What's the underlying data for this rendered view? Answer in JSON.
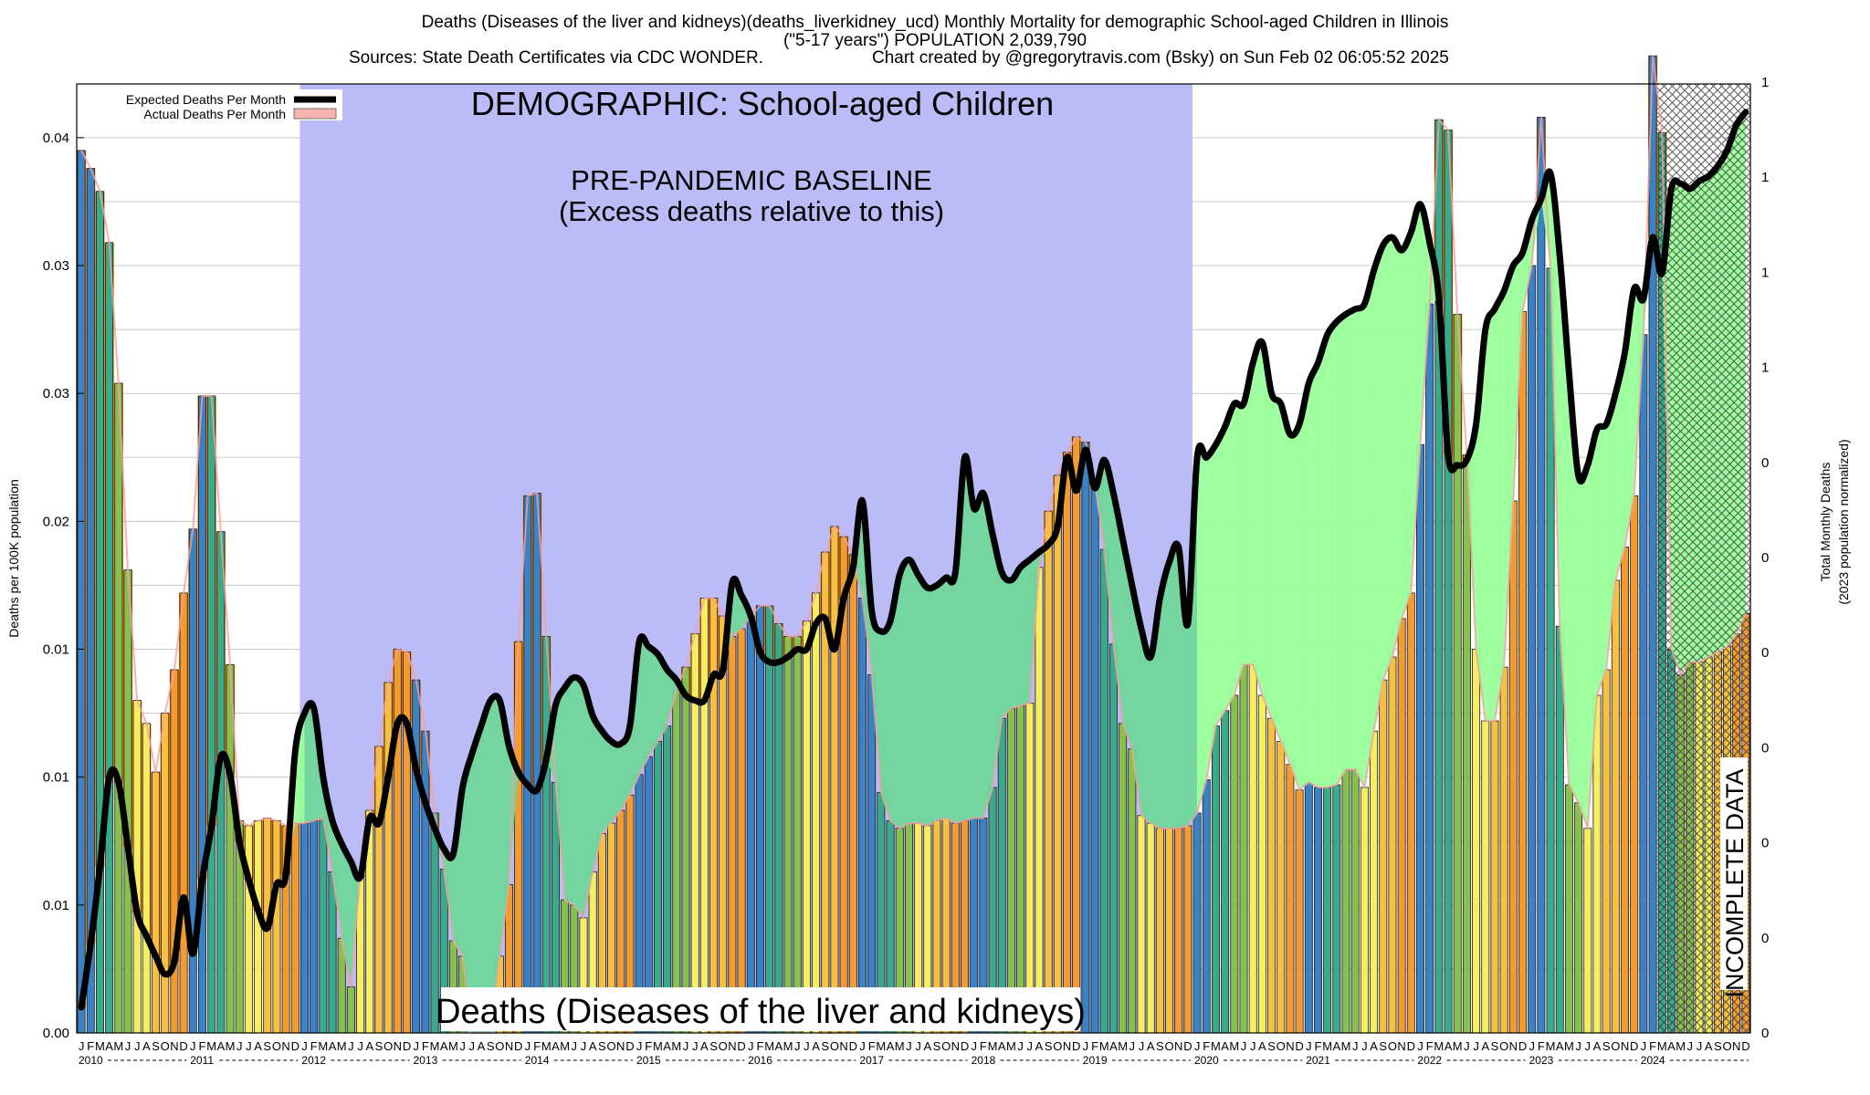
{
  "header": {
    "title_line1": "Deaths (Diseases of the liver and kidneys)(deaths_liverkidney_ucd) Monthly Mortality for demographic School-aged Children in Illinois",
    "title_line2": "(\"5-17 years\") POPULATION 2,039,790",
    "sources": "Sources: State Death Certificates via CDC WONDER.",
    "credit": "Chart created by @gregorytravis.com (Bsky) on Sun Feb 02 06:05:52 2025"
  },
  "annotations": {
    "demographic": "DEMOGRAPHIC: School-aged Children",
    "baseline_line1": "PRE-PANDEMIC BASELINE",
    "baseline_line2": "(Excess deaths relative to this)",
    "cause": "Deaths (Diseases of the liver and kidneys)",
    "incomplete": "INCOMPLETE DATA"
  },
  "legend": {
    "expected": "Expected Deaths Per Month",
    "actual": "Actual Deaths Per Month"
  },
  "colors": {
    "baseline_region": "#bbbbf8",
    "excess_fill": "#99ff99",
    "below_fill": "#ff7f00",
    "expected_line": "#000000",
    "actual_outline": "#f4a0a0",
    "bar_jan": "#3b82c4",
    "bar_mar": "#3aaa8a",
    "bar_may": "#88c050",
    "bar_jul": "#f6ee60",
    "bar_sep": "#f7c040",
    "bar_nov": "#f29b30",
    "incomplete_hatch": "#444444"
  },
  "chart_data": {
    "type": "bar",
    "xlabel": "",
    "ylabel": "Deaths per 100K population",
    "y2label_line1": "Total Monthly Deaths",
    "y2label_line2": "(2023 population normalized)",
    "ylim": [
      0,
      0.0371
    ],
    "yticks": [
      {
        "v": 0.0,
        "label": "0.00"
      },
      {
        "v": 0.005,
        "label": "0.01"
      },
      {
        "v": 0.01,
        "label": "0.01"
      },
      {
        "v": 0.015,
        "label": "0.01"
      },
      {
        "v": 0.02,
        "label": "0.02"
      },
      {
        "v": 0.025,
        "label": "0.03"
      },
      {
        "v": 0.03,
        "label": "0.03"
      },
      {
        "v": 0.035,
        "label": "0.04"
      }
    ],
    "y2ticks": [
      "0",
      "0",
      "0",
      "0",
      "0",
      "0",
      "0",
      "1",
      "1",
      "1",
      "1"
    ],
    "month_letters": [
      "J",
      "F",
      "M",
      "A",
      "M",
      "J",
      "J",
      "A",
      "S",
      "O",
      "N",
      "D"
    ],
    "years": [
      "2010",
      "2011",
      "2012",
      "2013",
      "2014",
      "2015",
      "2016",
      "2017",
      "2018",
      "2019",
      "2020",
      "2021",
      "2022",
      "2023",
      "2024"
    ],
    "baseline_period": [
      "2012-01",
      "2019-12"
    ],
    "incomplete_from": "2024-03",
    "series": [
      {
        "name": "Actual Deaths Per Month",
        "values": [
          0.0345,
          0.0338,
          0.0329,
          0.0309,
          0.0254,
          0.0181,
          0.013,
          0.0121,
          0.0102,
          0.0125,
          0.0142,
          0.0172,
          0.0197,
          0.0249,
          0.0249,
          0.0196,
          0.0144,
          0.0083,
          0.0081,
          0.0083,
          0.0084,
          0.0083,
          0.0081,
          0.0082,
          0.0082,
          0.0083,
          0.0084,
          0.0063,
          0.0037,
          0.0018,
          0.0062,
          0.0087,
          0.0112,
          0.0137,
          0.015,
          0.0149,
          0.0138,
          0.0118,
          0.0086,
          0.0064,
          0.0036,
          0.003,
          0.0,
          0.0,
          0.0,
          0.003,
          0.0058,
          0.0153,
          0.021,
          0.0211,
          0.0155,
          0.0098,
          0.0052,
          0.005,
          0.0045,
          0.0063,
          0.0078,
          0.0082,
          0.0087,
          0.0093,
          0.0101,
          0.0108,
          0.0114,
          0.012,
          0.0134,
          0.0143,
          0.0156,
          0.017,
          0.017,
          0.0163,
          0.0155,
          0.0158,
          0.0163,
          0.0167,
          0.0167,
          0.016,
          0.0155,
          0.0155,
          0.0161,
          0.0172,
          0.0188,
          0.0198,
          0.0194,
          0.0187,
          0.017,
          0.014,
          0.0094,
          0.0083,
          0.008,
          0.0082,
          0.0082,
          0.0081,
          0.0083,
          0.0084,
          0.0082,
          0.0083,
          0.0084,
          0.0084,
          0.0096,
          0.0123,
          0.0127,
          0.0128,
          0.0129,
          0.0182,
          0.0204,
          0.0218,
          0.0227,
          0.0233,
          0.0231,
          0.0215,
          0.0189,
          0.0152,
          0.0121,
          0.0111,
          0.0085,
          0.0082,
          0.008,
          0.008,
          0.008,
          0.0081,
          0.0086,
          0.0099,
          0.012,
          0.0126,
          0.0132,
          0.0144,
          0.0144,
          0.0132,
          0.0123,
          0.0114,
          0.0105,
          0.0095,
          0.0098,
          0.0096,
          0.0096,
          0.0097,
          0.0103,
          0.0103,
          0.0096,
          0.0118,
          0.0138,
          0.0147,
          0.0162,
          0.0172,
          0.023,
          0.0285,
          0.0357,
          0.0353,
          0.0281,
          0.0226,
          0.015,
          0.0122,
          0.0122,
          0.0143,
          0.0208,
          0.0282,
          0.03,
          0.0358,
          0.0299,
          0.0159,
          0.0097,
          0.009,
          0.008,
          0.0132,
          0.0142,
          0.0177,
          0.019,
          0.021,
          0.0273,
          0.0382,
          0.0352,
          0.015,
          0.014,
          0.0145,
          0.0145,
          0.0147,
          0.0149,
          0.0151,
          0.0156,
          0.0164
        ]
      },
      {
        "name": "Expected Deaths Per Month",
        "values": [
          0.001,
          0.0035,
          0.0065,
          0.01,
          0.0098,
          0.0073,
          0.0047,
          0.0038,
          0.003,
          0.0023,
          0.0028,
          0.0053,
          0.0031,
          0.006,
          0.0081,
          0.0108,
          0.0101,
          0.0075,
          0.006,
          0.0048,
          0.0041,
          0.0058,
          0.0062,
          0.011,
          0.0125,
          0.0127,
          0.01,
          0.0083,
          0.0074,
          0.0067,
          0.0061,
          0.0084,
          0.0082,
          0.01,
          0.0121,
          0.0121,
          0.0103,
          0.009,
          0.008,
          0.0072,
          0.007,
          0.0096,
          0.0109,
          0.012,
          0.013,
          0.013,
          0.0112,
          0.0102,
          0.0097,
          0.0095,
          0.0107,
          0.0128,
          0.0135,
          0.0139,
          0.0136,
          0.0124,
          0.0118,
          0.0114,
          0.0113,
          0.012,
          0.0153,
          0.0151,
          0.0148,
          0.0142,
          0.0138,
          0.0132,
          0.013,
          0.013,
          0.014,
          0.0142,
          0.0176,
          0.0171,
          0.0163,
          0.0149,
          0.0145,
          0.0145,
          0.0147,
          0.015,
          0.015,
          0.016,
          0.0162,
          0.015,
          0.017,
          0.0182,
          0.0208,
          0.0165,
          0.0157,
          0.0161,
          0.0179,
          0.0185,
          0.0179,
          0.0174,
          0.0175,
          0.0178,
          0.018,
          0.0225,
          0.0205,
          0.0211,
          0.0195,
          0.018,
          0.0177,
          0.0182,
          0.0185,
          0.0188,
          0.0191,
          0.0198,
          0.0225,
          0.0212,
          0.0228,
          0.0213,
          0.0224,
          0.0211,
          0.0193,
          0.0175,
          0.0158,
          0.0147,
          0.017,
          0.0184,
          0.019,
          0.016,
          0.0225,
          0.0225,
          0.023,
          0.0237,
          0.0246,
          0.0246,
          0.0262,
          0.027,
          0.025,
          0.0246,
          0.0234,
          0.0238,
          0.0254,
          0.0262,
          0.0273,
          0.0278,
          0.0281,
          0.0283,
          0.0285,
          0.0298,
          0.0308,
          0.0311,
          0.0306,
          0.0313,
          0.0324,
          0.0309,
          0.0287,
          0.0226,
          0.0222,
          0.0224,
          0.0238,
          0.0275,
          0.0283,
          0.029,
          0.03,
          0.0305,
          0.0318,
          0.0326,
          0.0336,
          0.0304,
          0.0258,
          0.0218,
          0.0222,
          0.0236,
          0.0238,
          0.025,
          0.0266,
          0.0291,
          0.0287,
          0.0311,
          0.0297,
          0.033,
          0.0332,
          0.033,
          0.0333,
          0.0335,
          0.0339,
          0.0345,
          0.0355,
          0.036
        ]
      }
    ]
  }
}
